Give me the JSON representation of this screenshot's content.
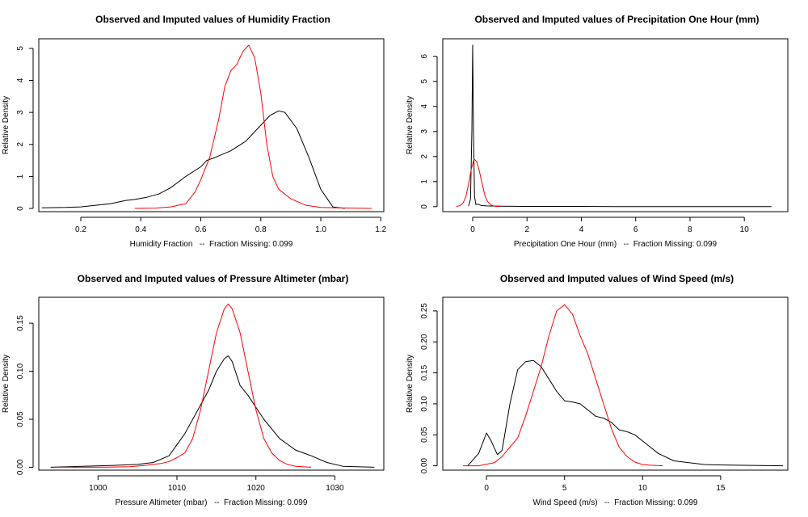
{
  "chart_data": [
    {
      "type": "line",
      "title": "Observed and Imputed values of Humidity Fraction",
      "xlabel": "Humidity Fraction   --  Fraction Missing: 0.099",
      "ylabel": "Relative Density",
      "xlim": [
        0.06,
        1.21
      ],
      "ylim": [
        -0.1,
        5.3
      ],
      "xticks": [
        0.2,
        0.4,
        0.6,
        0.8,
        1.0,
        1.2
      ],
      "xtick_labels": [
        "0.2",
        "0.4",
        "0.6",
        "0.8",
        "1.0",
        "1.2"
      ],
      "yticks": [
        0,
        1,
        2,
        3,
        4,
        5
      ],
      "ytick_labels": [
        "0",
        "1",
        "2",
        "3",
        "4",
        "5"
      ],
      "series": [
        {
          "color": "#000000",
          "x": [
            0.07,
            0.15,
            0.2,
            0.25,
            0.3,
            0.35,
            0.38,
            0.42,
            0.46,
            0.5,
            0.55,
            0.6,
            0.62,
            0.65,
            0.7,
            0.75,
            0.8,
            0.83,
            0.86,
            0.88,
            0.92,
            0.96,
            1.0,
            1.04,
            1.08
          ],
          "y": [
            0.02,
            0.03,
            0.05,
            0.1,
            0.15,
            0.25,
            0.28,
            0.35,
            0.45,
            0.65,
            1.0,
            1.3,
            1.5,
            1.6,
            1.8,
            2.1,
            2.6,
            2.9,
            3.05,
            3.0,
            2.5,
            1.6,
            0.6,
            0.05,
            0.0
          ]
        },
        {
          "color": "#ff0000",
          "x": [
            0.38,
            0.45,
            0.5,
            0.55,
            0.58,
            0.6,
            0.63,
            0.66,
            0.68,
            0.7,
            0.72,
            0.74,
            0.76,
            0.78,
            0.8,
            0.82,
            0.84,
            0.86,
            0.9,
            0.95,
            1.0,
            1.05,
            1.1,
            1.17
          ],
          "y": [
            0.0,
            0.01,
            0.05,
            0.15,
            0.5,
            0.9,
            1.6,
            2.8,
            3.8,
            4.3,
            4.5,
            4.9,
            5.1,
            4.7,
            3.6,
            2.0,
            1.0,
            0.6,
            0.3,
            0.1,
            0.03,
            0.02,
            0.01,
            0.0
          ]
        }
      ]
    },
    {
      "type": "line",
      "title": "Observed and Imputed values of Precipitation One Hour (mm)",
      "xlabel": "Precipitation One Hour (mm)   --  Fraction Missing: 0.099",
      "ylabel": "Relative Density",
      "xlim": [
        -1.1,
        11.6
      ],
      "ylim": [
        -0.2,
        6.7
      ],
      "xticks": [
        0,
        2,
        4,
        6,
        8,
        10
      ],
      "xtick_labels": [
        "0",
        "2",
        "4",
        "6",
        "8",
        "10"
      ],
      "yticks": [
        0,
        1,
        2,
        3,
        4,
        5,
        6
      ],
      "ytick_labels": [
        "0",
        "1",
        "2",
        "3",
        "4",
        "5",
        "6"
      ],
      "series": [
        {
          "color": "#000000",
          "x": [
            -0.15,
            -0.08,
            -0.03,
            0.0,
            0.03,
            0.07,
            0.12,
            0.2,
            0.3,
            0.5,
            1.0,
            2.0,
            4.0,
            6.0,
            8.0,
            11.0
          ],
          "y": [
            0.02,
            0.3,
            3.0,
            6.45,
            3.0,
            0.4,
            0.08,
            0.1,
            0.05,
            0.03,
            0.02,
            0.01,
            0.01,
            0.0,
            0.0,
            0.0
          ]
        },
        {
          "color": "#ff0000",
          "x": [
            -0.6,
            -0.45,
            -0.35,
            -0.25,
            -0.15,
            -0.05,
            0.05,
            0.15,
            0.25,
            0.35,
            0.45,
            0.55,
            0.7,
            0.85,
            1.0
          ],
          "y": [
            0.0,
            0.05,
            0.15,
            0.4,
            0.9,
            1.5,
            1.9,
            1.8,
            1.4,
            0.9,
            0.45,
            0.2,
            0.05,
            0.01,
            0.0
          ]
        }
      ]
    },
    {
      "type": "line",
      "title": "Observed and Imputed values of Pressure Altimeter (mbar)",
      "xlabel": "Pressure Altimeter (mbar)   --  Fraction Missing: 0.099",
      "ylabel": "Relative Density",
      "xlim": [
        992.5,
        1036.2
      ],
      "ylim": [
        -0.003,
        0.177
      ],
      "xticks": [
        1000,
        1010,
        1020,
        1030
      ],
      "xtick_labels": [
        "1000",
        "1010",
        "1020",
        "1030"
      ],
      "yticks": [
        0,
        0.05,
        0.1,
        0.15
      ],
      "ytick_labels": [
        "0.00",
        "0.05",
        "0.10",
        "0.15"
      ],
      "series": [
        {
          "color": "#000000",
          "x": [
            994,
            998,
            1002,
            1005,
            1007,
            1009,
            1011,
            1013,
            1014,
            1015,
            1016,
            1016.5,
            1017,
            1018,
            1019,
            1021,
            1023,
            1025,
            1027,
            1029,
            1031,
            1035
          ],
          "y": [
            0.0,
            0.001,
            0.002,
            0.003,
            0.005,
            0.012,
            0.035,
            0.065,
            0.08,
            0.1,
            0.113,
            0.116,
            0.11,
            0.085,
            0.075,
            0.05,
            0.03,
            0.018,
            0.012,
            0.005,
            0.001,
            0.0
          ]
        },
        {
          "color": "#ff0000",
          "x": [
            995,
            1000,
            1004,
            1006,
            1007,
            1008,
            1009,
            1010,
            1011,
            1012,
            1013,
            1014,
            1015,
            1016,
            1016.5,
            1017,
            1018,
            1019,
            1020,
            1021,
            1022,
            1023,
            1024,
            1025,
            1027
          ],
          "y": [
            0.0,
            0.0,
            0.0005,
            0.002,
            0.003,
            0.004,
            0.006,
            0.01,
            0.015,
            0.03,
            0.06,
            0.1,
            0.14,
            0.165,
            0.17,
            0.165,
            0.14,
            0.1,
            0.06,
            0.03,
            0.015,
            0.007,
            0.003,
            0.001,
            0.0
          ]
        }
      ]
    },
    {
      "type": "line",
      "title": "Observed and Imputed values of Wind Speed (m/s)",
      "xlabel": "Wind Speed (m/s)   --  Fraction Missing: 0.099",
      "ylabel": "Relative Density",
      "xlim": [
        -2.8,
        19.3
      ],
      "ylim": [
        -0.007,
        0.272
      ],
      "xticks": [
        0,
        5,
        10,
        15
      ],
      "xtick_labels": [
        "0",
        "5",
        "10",
        "15"
      ],
      "yticks": [
        0,
        0.05,
        0.1,
        0.15,
        0.2,
        0.25
      ],
      "ytick_labels": [
        "0.00",
        "0.05",
        "0.10",
        "0.15",
        "0.20",
        "0.25"
      ],
      "series": [
        {
          "color": "#000000",
          "x": [
            -1.2,
            -0.5,
            0.0,
            0.3,
            0.7,
            1.0,
            1.5,
            2.0,
            2.5,
            3.0,
            3.5,
            4.0,
            4.5,
            5.0,
            5.5,
            6.0,
            6.5,
            7.0,
            7.5,
            8.0,
            8.5,
            9.0,
            9.5,
            10.0,
            10.5,
            11.0,
            12.0,
            14.0,
            16.0,
            19.0
          ],
          "y": [
            0.0,
            0.02,
            0.053,
            0.04,
            0.018,
            0.025,
            0.1,
            0.155,
            0.168,
            0.17,
            0.16,
            0.14,
            0.12,
            0.105,
            0.103,
            0.1,
            0.09,
            0.08,
            0.077,
            0.07,
            0.058,
            0.055,
            0.05,
            0.04,
            0.03,
            0.02,
            0.008,
            0.002,
            0.001,
            0.0
          ]
        },
        {
          "color": "#ff0000",
          "x": [
            -1.5,
            -0.5,
            0.5,
            1.0,
            1.5,
            2.0,
            2.5,
            3.0,
            3.5,
            4.0,
            4.5,
            5.0,
            5.5,
            6.0,
            6.5,
            7.0,
            7.5,
            8.0,
            8.5,
            9.0,
            9.5,
            10.0,
            10.5,
            11.3
          ],
          "y": [
            0.0,
            0.0,
            0.005,
            0.015,
            0.03,
            0.045,
            0.08,
            0.12,
            0.16,
            0.21,
            0.25,
            0.26,
            0.245,
            0.21,
            0.18,
            0.14,
            0.1,
            0.06,
            0.03,
            0.015,
            0.006,
            0.002,
            0.001,
            0.0
          ]
        }
      ]
    }
  ]
}
